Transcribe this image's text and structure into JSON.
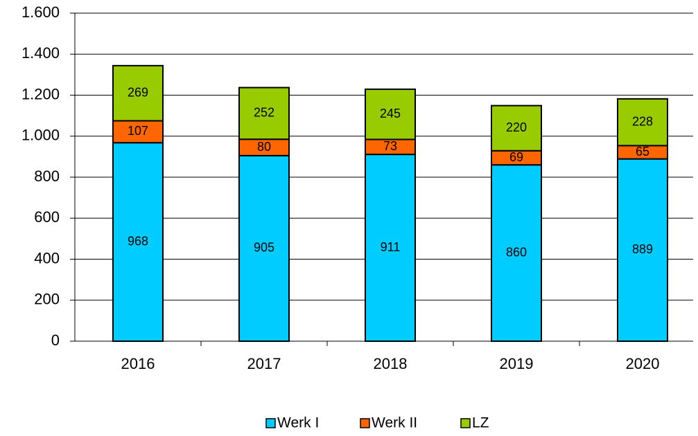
{
  "chart_data": {
    "type": "bar",
    "stacked": true,
    "categories": [
      "2016",
      "2017",
      "2018",
      "2019",
      "2020"
    ],
    "series": [
      {
        "name": "Werk I",
        "color": "#00ccff",
        "values": [
          968,
          905,
          911,
          860,
          889
        ]
      },
      {
        "name": "Werk II",
        "color": "#ff6600",
        "values": [
          107,
          80,
          73,
          69,
          65
        ]
      },
      {
        "name": "LZ",
        "color": "#99cc00",
        "values": [
          269,
          252,
          245,
          220,
          228
        ]
      }
    ],
    "ylim": [
      0,
      1600
    ],
    "yticks": [
      0,
      200,
      400,
      600,
      800,
      {
        "value": 1000,
        "label": "1.000"
      },
      {
        "value": 1200,
        "label": "1.200"
      },
      {
        "value": 1400,
        "label": "1.400"
      },
      {
        "value": 1600,
        "label": "1.600"
      }
    ],
    "grid": true,
    "legend": "bottom"
  }
}
